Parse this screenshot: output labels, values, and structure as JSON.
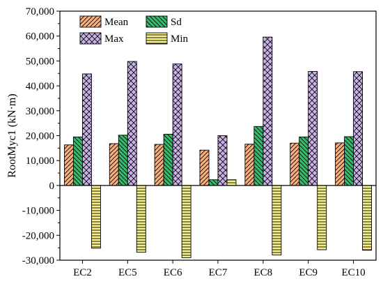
{
  "colors": {
    "Mean": "#f4b183",
    "Sd": "#2fbf6a",
    "Max": "#c9b3e6",
    "Min": "#f5f08a"
  },
  "patterns": {
    "Mean": "diag-forward",
    "Sd": "diag-back",
    "Max": "crosshatch",
    "Min": "horizontal"
  },
  "chart_data": {
    "type": "bar",
    "title": "",
    "xlabel": "",
    "ylabel": "RootMyc1 (kN·m)",
    "ylim": [
      -30000,
      70000
    ],
    "yticks": [
      -30000,
      -20000,
      -10000,
      0,
      10000,
      20000,
      30000,
      40000,
      50000,
      60000,
      70000
    ],
    "ytick_labels": [
      "-30,000",
      "-20,000",
      "-10,000",
      "0",
      "10,000",
      "20,000",
      "30,000",
      "40,000",
      "50,000",
      "60,000",
      "70,000"
    ],
    "categories": [
      "EC2",
      "EC5",
      "EC6",
      "EC7",
      "EC8",
      "EC9",
      "EC10"
    ],
    "legend_position": "top-left",
    "grid": false,
    "series": [
      {
        "name": "Mean",
        "values": [
          16300,
          16800,
          16500,
          14200,
          16600,
          17000,
          17100
        ]
      },
      {
        "name": "Sd",
        "values": [
          19500,
          20200,
          20600,
          2300,
          23700,
          19500,
          19600
        ]
      },
      {
        "name": "Max",
        "values": [
          44800,
          49800,
          48800,
          20000,
          59600,
          45800,
          45700
        ]
      },
      {
        "name": "Min",
        "values": [
          -25200,
          -26800,
          -29000,
          2300,
          -27900,
          -25800,
          -26000
        ]
      }
    ]
  }
}
